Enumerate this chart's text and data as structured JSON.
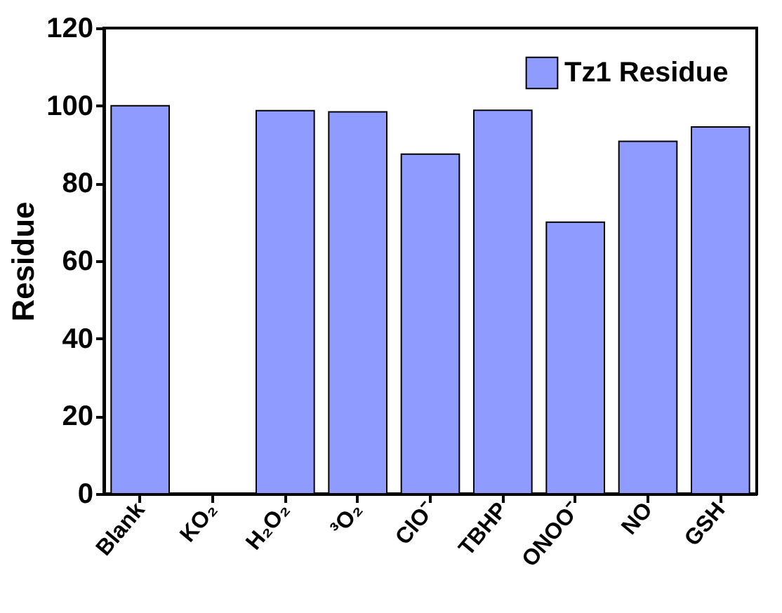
{
  "chart_data": {
    "type": "bar",
    "ylabel": "Residue",
    "categories": [
      "Blank",
      "KO₂",
      "H₂O₂",
      "³O₂",
      "ClO⁻",
      "TBHP",
      "ONOO⁻",
      "NO",
      "GSH"
    ],
    "series": [
      {
        "name": "Tz1 Residue",
        "color": "#8f9bff",
        "values": [
          100,
          null,
          98.7,
          98.4,
          87.5,
          98.8,
          70.0,
          90.8,
          94.5
        ]
      }
    ],
    "ylim": [
      0,
      120
    ],
    "yticks": [
      0,
      20,
      40,
      60,
      80,
      100,
      120
    ],
    "grid": false,
    "legend": "top right"
  }
}
